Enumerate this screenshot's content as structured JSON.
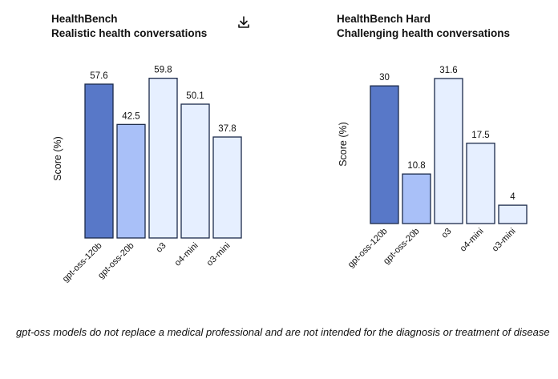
{
  "charts": [
    {
      "title": "HealthBench",
      "subtitle": "Realistic health conversations",
      "ylabel": "Score (%)",
      "download_icon": "download-icon"
    },
    {
      "title": "HealthBench Hard",
      "subtitle": "Challenging health conversations",
      "ylabel": "Score (%)"
    }
  ],
  "colors": {
    "gpt-oss-120b": "#5878c8",
    "gpt-oss-20b": "#a9c0f8",
    "o3": "#e6efff",
    "o4-mini": "#e6efff",
    "o3-mini": "#e6efff",
    "stroke": "#1b2a4a"
  },
  "chart_data": [
    {
      "type": "bar",
      "title": "HealthBench",
      "subtitle": "Realistic health conversations",
      "xlabel": "",
      "ylabel": "Score (%)",
      "categories": [
        "gpt-oss-120b",
        "gpt-oss-20b",
        "o3",
        "o4-mini",
        "o3-mini"
      ],
      "values": [
        57.6,
        42.5,
        59.8,
        50.1,
        37.8
      ],
      "value_labels": [
        "57.6",
        "42.5",
        "59.8",
        "50.1",
        "37.8"
      ],
      "ylim": [
        0,
        60
      ],
      "grid": false,
      "legend": "none"
    },
    {
      "type": "bar",
      "title": "HealthBench Hard",
      "subtitle": "Challenging health conversations",
      "xlabel": "",
      "ylabel": "Score (%)",
      "categories": [
        "gpt-oss-120b",
        "gpt-oss-20b",
        "o3",
        "o4-mini",
        "o3-mini"
      ],
      "values": [
        30,
        10.8,
        31.6,
        17.5,
        4
      ],
      "value_labels": [
        "30",
        "10.8",
        "31.6",
        "17.5",
        "4"
      ],
      "ylim": [
        0,
        31.6
      ],
      "grid": false,
      "legend": "none"
    }
  ],
  "footnote": "gpt-oss models do not replace a medical professional and are not intended for the diagnosis or treatment of disease"
}
